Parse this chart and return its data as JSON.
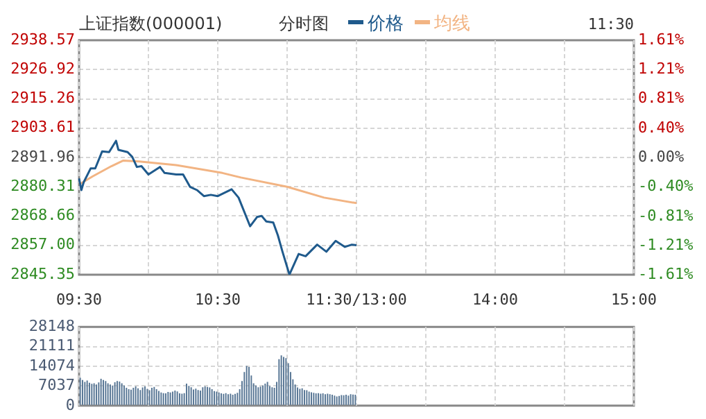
{
  "chart_data": [
    {
      "type": "line",
      "title": "上证指数(000001)",
      "subtitle": "分时图",
      "annotations": [
        "11:30"
      ],
      "legend": "top",
      "grid": true,
      "marker": "none",
      "line_style": "solid",
      "categories": [
        "09:30",
        null,
        null,
        null,
        null,
        null,
        null,
        null,
        null,
        null,
        null,
        null,
        null,
        null,
        null,
        null,
        null,
        null,
        null,
        null,
        null,
        null,
        null,
        null,
        null,
        null,
        null,
        null,
        null,
        null,
        null,
        null,
        null,
        null,
        null,
        null,
        null,
        null,
        null,
        null,
        null,
        null,
        null,
        null,
        null,
        null,
        null,
        null,
        null,
        null,
        null,
        null,
        null,
        null,
        null,
        null,
        null,
        null,
        null,
        null,
        "10:30",
        null,
        null,
        null,
        null,
        null,
        null,
        null,
        null,
        null,
        null,
        null,
        null,
        null,
        null,
        null,
        null,
        null,
        null,
        null,
        null,
        null,
        null,
        null,
        null,
        null,
        null,
        null,
        null,
        null,
        null,
        null,
        null,
        null,
        null,
        null,
        null,
        null,
        null,
        null,
        null,
        null,
        null,
        null,
        null,
        null,
        null,
        null,
        null,
        null,
        null,
        null,
        null,
        null,
        null,
        null,
        null,
        null,
        null,
        null,
        "11:30/13:00",
        null,
        null,
        null,
        null,
        null,
        null,
        null,
        null,
        null,
        null,
        null,
        null,
        null,
        null,
        null,
        null,
        null,
        null,
        null,
        null,
        null,
        null,
        null,
        null,
        null,
        null,
        null,
        null,
        null,
        null,
        null,
        null,
        null,
        null,
        null,
        null,
        null,
        null,
        null,
        null,
        null,
        null,
        null,
        null,
        null,
        null,
        null,
        null,
        null,
        null,
        null,
        null,
        null,
        null,
        null,
        null,
        null,
        null,
        null,
        "14:00",
        null,
        null,
        null,
        null,
        null,
        null,
        null,
        null,
        null,
        null,
        null,
        null,
        null,
        null,
        null,
        null,
        null,
        null,
        null,
        null,
        null,
        null,
        null,
        null,
        null,
        null,
        null,
        null,
        null,
        null,
        null,
        null,
        null,
        null,
        null,
        null,
        null,
        null,
        null,
        null,
        null,
        null,
        null,
        null,
        null,
        null,
        null,
        null,
        null,
        null,
        null,
        null,
        null,
        null,
        null,
        null,
        null,
        null,
        null,
        "15:00"
      ],
      "ylim": [
        2845.35,
        2938.57
      ],
      "yticks": [
        2845.35,
        {
          "value": 2857,
          "label": "2857.00"
        },
        2868.66,
        2880.31,
        2891.96,
        2903.61,
        2915.26,
        2926.92,
        2938.57
      ],
      "y2lim": [
        -1.61,
        1.61
      ],
      "y2ticks": [
        {
          "value": -1.61,
          "label": "-1.61%"
        },
        {
          "value": -1.21,
          "label": "-1.21%"
        },
        {
          "value": -0.81,
          "label": "-0.81%"
        },
        {
          "value": -0.4,
          "label": "-0.40%"
        },
        {
          "value": 0,
          "label": "0.00%"
        },
        {
          "value": 0.4,
          "label": "0.40%"
        },
        {
          "value": 0.81,
          "label": "0.81%"
        },
        {
          "value": 1.21,
          "label": "1.21%"
        },
        {
          "value": 1.61,
          "label": "1.61%"
        }
      ],
      "series": [
        {
          "name": "价格",
          "color": "#1f5a8c",
          "values": [
            2883.6,
            2879.0,
            2882.1,
            null,
            null,
            2887.6,
            null,
            2887.6,
            null,
            null,
            2894.4,
            null,
            null,
            2894.1,
            null,
            null,
            2898.6,
            2895.0,
            null,
            null,
            null,
            2894.1,
            null,
            2892.2,
            null,
            2888.2,
            null,
            2888.5,
            null,
            null,
            2885.2,
            null,
            null,
            null,
            null,
            2888.2,
            null,
            2885.8,
            null,
            null,
            null,
            null,
            2885.2,
            null,
            null,
            2885.2,
            null,
            null,
            2880.3,
            null,
            null,
            2879.0,
            null,
            null,
            2876.6,
            null,
            null,
            2877.1,
            null,
            null,
            2876.6,
            null,
            2877.5,
            null,
            null,
            null,
            2879.3,
            null,
            null,
            2876.0,
            null,
            null,
            null,
            null,
            2864.6,
            null,
            null,
            2868.3,
            null,
            2868.7,
            null,
            2866.5,
            null,
            null,
            2866.1,
            null,
            2861.0,
            null,
            2854.5,
            null,
            null,
            2845.4,
            null,
            null,
            null,
            2853.6,
            null,
            null,
            2852.7,
            null,
            null,
            null,
            null,
            2857.3,
            null,
            null,
            null,
            2854.5,
            null,
            null,
            null,
            2858.8,
            null,
            null,
            null,
            2856.4,
            null,
            null,
            2857.3,
            null,
            2857.1,
            null,
            null,
            null,
            null,
            null,
            null,
            null,
            null,
            null,
            null,
            null,
            null,
            null,
            null,
            null,
            null,
            null,
            null,
            null,
            null,
            null,
            null,
            null,
            null,
            null,
            null,
            null,
            null,
            null,
            null,
            null,
            null,
            null,
            null,
            null,
            null,
            null,
            null,
            null,
            null,
            null,
            null,
            null,
            null,
            null,
            null,
            null,
            null,
            null,
            null,
            null,
            null,
            null,
            null,
            null,
            null,
            null,
            null,
            null,
            null,
            null,
            null,
            null,
            null,
            null,
            null,
            null,
            null,
            null,
            null,
            null,
            null,
            null,
            null,
            null,
            null,
            null,
            null,
            null,
            null,
            null,
            null,
            null,
            null,
            null,
            null,
            null,
            null,
            null,
            null,
            null,
            null,
            null,
            null,
            null,
            null,
            null,
            null,
            null,
            null,
            null,
            null,
            null,
            null,
            null,
            null,
            null,
            null,
            null,
            null,
            null,
            null,
            null,
            null,
            null,
            null,
            null,
            null,
            null,
            null
          ]
        },
        {
          "name": "均线",
          "color": "#f2b483",
          "values": [
            2881.2,
            null,
            null,
            null,
            null,
            null,
            2884.5,
            null,
            null,
            null,
            null,
            null,
            null,
            null,
            2888.5,
            null,
            null,
            null,
            null,
            2890.7,
            null,
            null,
            null,
            null,
            null,
            null,
            2890.4,
            null,
            null,
            null,
            null,
            null,
            null,
            null,
            null,
            null,
            null,
            null,
            null,
            null,
            null,
            null,
            2888.9,
            null,
            null,
            null,
            null,
            null,
            null,
            null,
            null,
            null,
            null,
            null,
            null,
            null,
            null,
            null,
            null,
            null,
            null,
            null,
            2885.8,
            null,
            null,
            null,
            null,
            null,
            null,
            null,
            2884.0,
            null,
            null,
            null,
            null,
            null,
            null,
            null,
            null,
            null,
            null,
            null,
            null,
            null,
            null,
            null,
            null,
            null,
            null,
            null,
            2880.3,
            null,
            null,
            null,
            null,
            null,
            null,
            null,
            null,
            null,
            null,
            null,
            null,
            null,
            null,
            null,
            2876.0,
            null,
            null,
            null,
            null,
            null,
            null,
            null,
            null,
            null,
            null,
            null,
            null,
            null,
            2873.8,
            null,
            null,
            null,
            null,
            null,
            null,
            null,
            null,
            null,
            null,
            null,
            null,
            null,
            null,
            null,
            null,
            null,
            null,
            null,
            null,
            null,
            null,
            null,
            null,
            null,
            null,
            null,
            null,
            null,
            null,
            null,
            null,
            null,
            null,
            null,
            null,
            null,
            null,
            null,
            null,
            null,
            null,
            null,
            null,
            null,
            null,
            null,
            null,
            null,
            null,
            null,
            null,
            null,
            null,
            null,
            null,
            null,
            null,
            null,
            null,
            null,
            null,
            null,
            null,
            null,
            null,
            null,
            null,
            null,
            null,
            null,
            null,
            null,
            null,
            null,
            null,
            null,
            null,
            null,
            null,
            null,
            null,
            null,
            null,
            null,
            null,
            null,
            null,
            null,
            null,
            null,
            null,
            null,
            null,
            null,
            null,
            null,
            null,
            null,
            null,
            null,
            null,
            null,
            null,
            null,
            null,
            null,
            null,
            null,
            null,
            null,
            null,
            null,
            null,
            null,
            null,
            null,
            null,
            null,
            null
          ]
        }
      ]
    },
    {
      "type": "bar",
      "tick_labels": "y",
      "grid": true,
      "color": "#5a7896",
      "ylim": [
        0,
        28148
      ],
      "yticks": [
        0,
        7037,
        14074,
        21111,
        28148
      ],
      "categories": [
        null,
        null,
        null,
        null,
        null,
        null,
        null,
        null,
        null,
        null,
        null,
        null,
        null,
        null,
        null,
        null,
        null,
        null,
        null,
        null,
        null,
        null,
        null,
        null,
        null,
        null,
        null,
        null,
        null,
        null,
        null,
        null,
        null,
        null,
        null,
        null,
        null,
        null,
        null,
        null,
        null,
        null,
        null,
        null,
        null,
        null,
        null,
        null,
        null,
        null,
        null,
        null,
        null,
        null,
        null,
        null,
        null,
        null,
        null,
        null,
        null,
        null,
        null,
        null,
        null,
        null,
        null,
        null,
        null,
        null,
        null,
        null,
        null,
        null,
        null,
        null,
        null,
        null,
        null,
        null,
        null,
        null,
        null,
        null,
        null,
        null,
        null,
        null,
        null,
        null,
        null,
        null,
        null,
        null,
        null,
        null,
        null,
        null,
        null,
        null,
        null,
        null,
        null,
        null,
        null,
        null,
        null,
        null,
        null,
        null,
        null,
        null,
        null,
        null,
        null,
        null,
        null,
        null,
        null,
        null,
        null,
        null,
        null,
        null,
        null,
        null,
        null,
        null,
        null,
        null,
        null,
        null,
        null,
        null,
        null,
        null,
        null,
        null,
        null,
        null,
        null,
        null,
        null,
        null,
        null,
        null,
        null,
        null,
        null,
        null,
        null,
        null,
        null,
        null,
        null,
        null,
        null,
        null,
        null,
        null,
        null,
        null,
        null,
        null,
        null,
        null,
        null,
        null,
        null,
        null,
        null,
        null,
        null,
        null,
        null,
        null,
        null,
        null,
        null,
        null,
        null,
        null,
        null,
        null,
        null,
        null,
        null,
        null,
        null,
        null,
        null,
        null,
        null,
        null,
        null,
        null,
        null,
        null,
        null,
        null,
        null,
        null,
        null,
        null,
        null,
        null,
        null,
        null,
        null,
        null,
        null,
        null,
        null,
        null,
        null,
        null,
        null,
        null,
        null,
        null,
        null,
        null,
        null,
        null,
        null,
        null,
        null,
        null,
        null,
        null,
        null,
        null,
        null,
        null,
        null,
        null,
        null,
        null,
        null,
        null
      ],
      "values": [
        10000,
        9200,
        8500,
        9000,
        8200,
        7800,
        8000,
        7600,
        8300,
        9600,
        9200,
        8800,
        8000,
        7600,
        7200,
        8400,
        8800,
        8600,
        8000,
        7200,
        6400,
        5900,
        5700,
        6400,
        6900,
        6200,
        5600,
        6500,
        6900,
        6000,
        5500,
        6400,
        6700,
        5900,
        5300,
        4700,
        4500,
        4400,
        4900,
        4700,
        5000,
        5400,
        5100,
        4400,
        4300,
        4500,
        7900,
        7100,
        6600,
        5800,
        6100,
        5600,
        5400,
        6600,
        6900,
        6700,
        6500,
        5900,
        5200,
        5000,
        4700,
        4400,
        4200,
        4500,
        4100,
        4300,
        3900,
        4200,
        4600,
        5900,
        8800,
        12000,
        14200,
        13800,
        10800,
        8000,
        7200,
        6600,
        6800,
        7200,
        7900,
        8500,
        7000,
        6600,
        6400,
        8500,
        16600,
        18000,
        17400,
        17000,
        15200,
        12000,
        9400,
        7600,
        6500,
        6000,
        6200,
        5600,
        5500,
        5000,
        4800,
        4600,
        4400,
        4500,
        4300,
        4400,
        4100,
        4300,
        4100,
        3900,
        3600,
        3300,
        3500,
        3800,
        3700,
        3900,
        3600,
        4100,
        4000,
        3900,
        null,
        null,
        null,
        null,
        null,
        null,
        null,
        null,
        null,
        null,
        null,
        null,
        null,
        null,
        null,
        null,
        null,
        null,
        null,
        null,
        null,
        null,
        null,
        null,
        null,
        null,
        null,
        null,
        null,
        null,
        null,
        null,
        null,
        null,
        null,
        null,
        null,
        null,
        null,
        null,
        null,
        null,
        null,
        null,
        null,
        null,
        null,
        null,
        null,
        null,
        null,
        null,
        null,
        null,
        null,
        null,
        null,
        null,
        null,
        null,
        null,
        null,
        null,
        null,
        null,
        null,
        null,
        null,
        null,
        null,
        null,
        null,
        null,
        null,
        null,
        null,
        null,
        null,
        null,
        null,
        null,
        null,
        null,
        null,
        null,
        null,
        null,
        null,
        null,
        null,
        null,
        null,
        null,
        null,
        null,
        null,
        null,
        null,
        null,
        null,
        null,
        null,
        null,
        null,
        null,
        null,
        null,
        null,
        null,
        null,
        null,
        null,
        null,
        null,
        null,
        null,
        null,
        null,
        null,
        null
      ]
    }
  ]
}
